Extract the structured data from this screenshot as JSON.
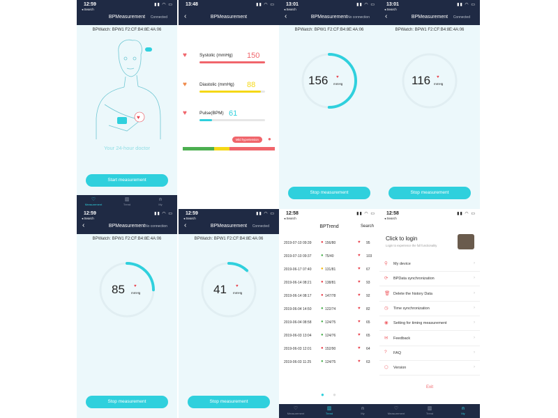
{
  "status_bar": {
    "search_label": "◂ Search"
  },
  "p1": {
    "time": "12:59",
    "title": "BPMeasurement",
    "status": "Connected",
    "device": "BPWatch: BPW1 F2:CF:B4:8E:4A:06",
    "illustration_text": "Your 24-hour doctor",
    "button": "Start measurement",
    "tabs": [
      "Measurement",
      "Trend",
      "My"
    ]
  },
  "p2": {
    "time": "13:48",
    "title": "BPMeasurement",
    "systolic_label": "Systolic  (mmHg)",
    "systolic_value": "150",
    "diastolic_label": "Diastolic  (mmHg)",
    "diastolic_value": "88",
    "pulse_label": "Pulse(BPM)",
    "pulse_value": "61",
    "category": "Mild hypertension",
    "colors": {
      "systolic": "#f0656b",
      "diastolic": "#f5d816",
      "pulse": "#2fd0dd"
    }
  },
  "p3": {
    "time": "13:01",
    "title": "BPMeasurement",
    "status": "No connection",
    "device": "BPWatch: BPW1 F2:CF:B4:8E:4A:06",
    "value": "156",
    "unit": "mmHg",
    "button": "Stop measurement",
    "progress": 0.5
  },
  "p4": {
    "time": "13:01",
    "title": "BPMeasurement",
    "status": "Connected",
    "device": "BPWatch: BPW1 F2:CF:B4:8E:4A:06",
    "value": "116",
    "unit": "mmHg",
    "button": "Stop measurement",
    "progress": 0.0
  },
  "p5": {
    "time": "12:59",
    "title": "BPMeasurement",
    "status": "No connection",
    "device": "BPWatch: BPW1 F2:CF:B4:8E:4A:06",
    "value": "85",
    "unit": "mmHg",
    "button": "Stop measurement",
    "progress": 0.25
  },
  "p6": {
    "time": "12:59",
    "title": "BPMeasurement",
    "status": "Connected",
    "device": "BPWatch: BPW1 F2:CF:B4:8E:4A:06",
    "value": "41",
    "unit": "mmHg",
    "button": "Stop measurement",
    "progress": 0.12
  },
  "p7": {
    "time": "12:58",
    "title": "BPTrend",
    "search": "Search",
    "rows": [
      {
        "date": "2019-07-10 09:39",
        "bp": "156/80",
        "pulse": "95",
        "bp_color": "#e8424d"
      },
      {
        "date": "2019-07-10 09:37",
        "bp": "75/40",
        "pulse": "103",
        "bp_color": "#4caf50"
      },
      {
        "date": "2019-06-17 07:40",
        "bp": "131/81",
        "pulse": "67",
        "bp_color": "#f5b70a"
      },
      {
        "date": "2019-06-14 08:21",
        "bp": "138/81",
        "pulse": "93",
        "bp_color": "#e8424d"
      },
      {
        "date": "2019-06-14 08:17",
        "bp": "147/78",
        "pulse": "92",
        "bp_color": "#e8424d"
      },
      {
        "date": "2019-06-04 14:50",
        "bp": "122/74",
        "pulse": "82",
        "bp_color": "#4caf50"
      },
      {
        "date": "2019-06-04 08:58",
        "bp": "124/75",
        "pulse": "65",
        "bp_color": "#4caf50"
      },
      {
        "date": "2019-06-03 13:04",
        "bp": "124/76",
        "pulse": "65",
        "bp_color": "#4caf50"
      },
      {
        "date": "2019-06-03 12:01",
        "bp": "152/90",
        "pulse": "64",
        "bp_color": "#e8424d"
      },
      {
        "date": "2019-06-03 11:25",
        "bp": "124/75",
        "pulse": "63",
        "bp_color": "#4caf50"
      }
    ],
    "tabs": [
      "Measurement",
      "Trend",
      "My"
    ]
  },
  "p8": {
    "time": "12:58",
    "login_title": "Click to login",
    "login_sub": "Login to experience the full functionality",
    "menu": [
      {
        "icon": "link-icon",
        "glyph": "⚲",
        "label": "My device"
      },
      {
        "icon": "sync-icon",
        "glyph": "⟳",
        "label": "BPData synchronization"
      },
      {
        "icon": "trash-icon",
        "glyph": "🗑",
        "label": "Delete the history Data"
      },
      {
        "icon": "clock-icon",
        "glyph": "◷",
        "label": "Time synchronization"
      },
      {
        "icon": "timer-icon",
        "glyph": "◉",
        "label": "Setting for timing measurement"
      },
      {
        "icon": "chat-icon",
        "glyph": "✉",
        "label": "Feedback"
      },
      {
        "icon": "faq-icon",
        "glyph": "?",
        "label": "FAQ"
      },
      {
        "icon": "version-icon",
        "glyph": "⬡",
        "label": "Version"
      }
    ],
    "exit": "Exit",
    "tabs": [
      "Measurement",
      "Trend",
      "My"
    ]
  }
}
